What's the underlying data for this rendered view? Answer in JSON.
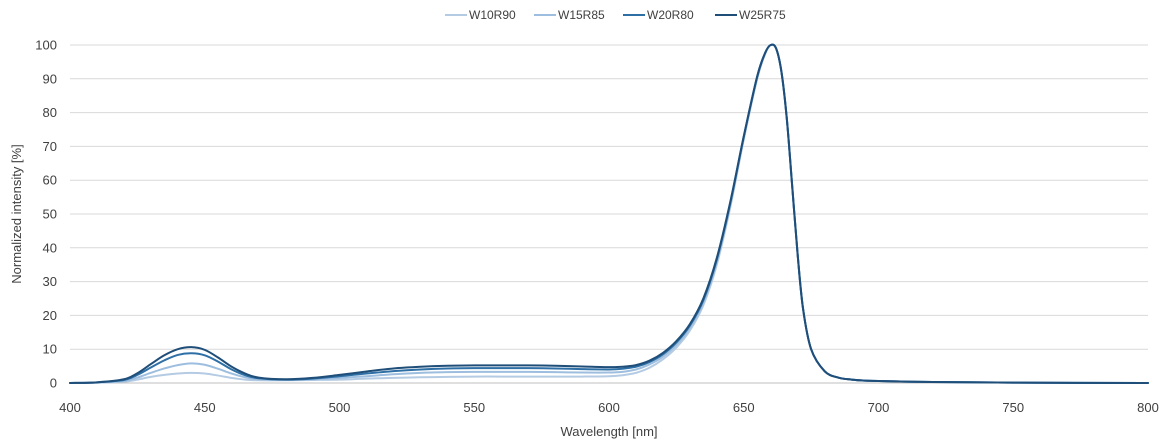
{
  "chart_data": {
    "type": "line",
    "title": "",
    "xlabel": "Wavelength [nm]",
    "ylabel": "Normalized intensity [%]",
    "xlim": [
      400,
      800
    ],
    "ylim": [
      0,
      100
    ],
    "xticks": [
      400,
      450,
      500,
      550,
      600,
      650,
      700,
      750,
      800
    ],
    "yticks": [
      0,
      10,
      20,
      30,
      40,
      50,
      60,
      70,
      80,
      90,
      100
    ],
    "grid": "horizontal",
    "legend_position": "top-center",
    "x": [
      400,
      410,
      420,
      425,
      430,
      435,
      440,
      445,
      450,
      455,
      460,
      465,
      470,
      480,
      490,
      500,
      510,
      520,
      530,
      540,
      550,
      560,
      570,
      580,
      590,
      600,
      605,
      610,
      615,
      620,
      625,
      630,
      635,
      640,
      645,
      650,
      655,
      658,
      660,
      662,
      664,
      666,
      668,
      670,
      672,
      675,
      680,
      685,
      690,
      695,
      700,
      710,
      720,
      750,
      800
    ],
    "series": [
      {
        "name": "W10R90",
        "color": "#b4cbe3",
        "values": [
          0,
          0.1,
          0.4,
          1.0,
          1.8,
          2.4,
          2.8,
          3.0,
          2.8,
          2.2,
          1.5,
          1.0,
          0.8,
          0.8,
          0.9,
          1.0,
          1.3,
          1.5,
          1.7,
          1.8,
          1.9,
          1.9,
          1.9,
          1.9,
          1.9,
          2.0,
          2.3,
          3.0,
          4.5,
          7.0,
          10.5,
          15.5,
          23.0,
          35.0,
          52.0,
          72.0,
          90.0,
          97.5,
          100,
          99.0,
          92.0,
          78.0,
          58.0,
          38.0,
          22.0,
          10.0,
          3.5,
          1.6,
          1.0,
          0.7,
          0.6,
          0.4,
          0.3,
          0.1,
          0
        ]
      },
      {
        "name": "W15R85",
        "color": "#9dbedf",
        "values": [
          0,
          0.1,
          0.6,
          1.6,
          3.0,
          4.3,
          5.3,
          5.8,
          5.4,
          4.2,
          2.8,
          1.7,
          1.1,
          0.9,
          1.1,
          1.5,
          2.0,
          2.6,
          3.0,
          3.2,
          3.3,
          3.3,
          3.3,
          3.2,
          3.1,
          3.1,
          3.3,
          4.0,
          5.5,
          7.8,
          11.3,
          16.3,
          23.8,
          35.8,
          52.6,
          72.4,
          90.3,
          97.6,
          100,
          99.0,
          92.0,
          78.0,
          58.0,
          38.0,
          22.0,
          10.0,
          3.5,
          1.6,
          1.0,
          0.7,
          0.6,
          0.4,
          0.3,
          0.1,
          0
        ]
      },
      {
        "name": "W20R80",
        "color": "#2e6fa6",
        "values": [
          0,
          0.2,
          0.9,
          2.4,
          4.6,
          6.7,
          8.3,
          8.8,
          8.2,
          6.3,
          4.0,
          2.3,
          1.4,
          1.0,
          1.3,
          2.0,
          2.8,
          3.5,
          4.0,
          4.3,
          4.4,
          4.4,
          4.4,
          4.3,
          4.1,
          4.0,
          4.2,
          4.8,
          6.2,
          8.5,
          12.0,
          17.0,
          24.5,
          36.5,
          53.2,
          72.8,
          90.6,
          97.7,
          100,
          99.0,
          92.0,
          78.0,
          58.0,
          38.0,
          22.0,
          10.0,
          3.5,
          1.6,
          1.0,
          0.7,
          0.6,
          0.4,
          0.3,
          0.1,
          0
        ]
      },
      {
        "name": "W25R75",
        "color": "#1f4e79",
        "values": [
          0,
          0.2,
          1.1,
          2.9,
          5.6,
          8.2,
          10.0,
          10.6,
          9.8,
          7.5,
          4.8,
          2.8,
          1.6,
          1.1,
          1.5,
          2.4,
          3.4,
          4.3,
          4.8,
          5.1,
          5.2,
          5.2,
          5.2,
          5.1,
          4.9,
          4.7,
          4.8,
          5.3,
          6.6,
          8.9,
          12.4,
          17.4,
          25.0,
          37.0,
          53.6,
          73.0,
          90.8,
          97.8,
          100,
          99.0,
          92.0,
          78.0,
          58.0,
          38.0,
          22.0,
          10.0,
          3.5,
          1.6,
          1.0,
          0.7,
          0.6,
          0.4,
          0.3,
          0.1,
          0
        ]
      }
    ]
  }
}
